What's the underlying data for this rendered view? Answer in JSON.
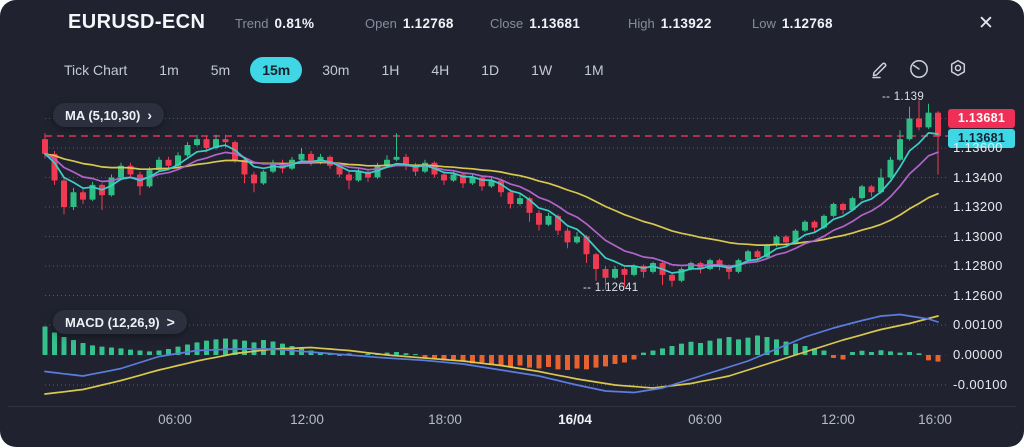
{
  "header": {
    "symbol": "EURUSD-ECN",
    "stats": [
      {
        "label": "Trend",
        "value": "0.81%"
      },
      {
        "label": "Open",
        "value": "1.12768"
      },
      {
        "label": "Close",
        "value": "1.13681"
      },
      {
        "label": "High",
        "value": "1.13922"
      },
      {
        "label": "Low",
        "value": "1.12768"
      }
    ],
    "close_glyph": "✕"
  },
  "toolbar": {
    "timeframes": [
      "Tick Chart",
      "1m",
      "5m",
      "15m",
      "30m",
      "1H",
      "4H",
      "1D",
      "1W",
      "1M"
    ],
    "active_timeframe": "15m",
    "icon_names": [
      "edit-icon",
      "gauge-icon",
      "settings-icon"
    ]
  },
  "price_panel": {
    "indicator_label": "MA (5,10,30)",
    "chevron": "›",
    "badge_close": {
      "value": "1.13681",
      "color": "#ef2f55"
    },
    "badge_current": {
      "value": "1.13681",
      "color": "#3fd7e6"
    },
    "high_annotation": "-- 1.139",
    "low_annotation": "-- 1.12641",
    "y_ticks": [
      "1.13600",
      "1.13400",
      "1.13200",
      "1.13000",
      "1.12800",
      "1.12600"
    ]
  },
  "macd_panel": {
    "indicator_label": "MACD (12,26,9)",
    "chevron": ">",
    "y_ticks": [
      "0.00100",
      "0.00000",
      "-0.00100"
    ]
  },
  "time_axis": {
    "labels": [
      {
        "label": "06:00",
        "emphasis": false
      },
      {
        "label": "12:00",
        "emphasis": false
      },
      {
        "label": "18:00",
        "emphasis": false
      },
      {
        "label": "16/04",
        "emphasis": true
      },
      {
        "label": "06:00",
        "emphasis": false
      },
      {
        "label": "12:00",
        "emphasis": false
      },
      {
        "label": "16:00",
        "emphasis": false
      }
    ]
  },
  "colors": {
    "up": "#2ebd85",
    "down": "#ef3a52",
    "ma5": "#3bcfc9",
    "ma10": "#b164c9",
    "ma30": "#d9c84f",
    "macd_line": "#5b7de0",
    "signal_line": "#d9c84f",
    "hist_up": "#35c08c",
    "hist_down": "#e8622f",
    "close_line": "#e8334e",
    "grid": "rgba(255,255,255,0.25)",
    "accent": "#3fd7e6",
    "card_bg": "#20232f"
  },
  "chart_data": {
    "type": "candlestick",
    "symbol": "EURUSD-ECN",
    "interval": "15m",
    "indicators": {
      "ma_periods": [
        5,
        10,
        30
      ],
      "macd_params": [
        12,
        26,
        9
      ]
    },
    "price_axis": {
      "min": 1.1255,
      "max": 1.1396,
      "gridlines": [
        1.138,
        1.136,
        1.134,
        1.132,
        1.13,
        1.128,
        1.126
      ]
    },
    "close_line": 1.13681,
    "high_marker": 1.13922,
    "low_marker": 1.12641,
    "candles": [
      [
        1.1366,
        1.137,
        1.1353,
        1.1356
      ],
      [
        1.1356,
        1.1358,
        1.1335,
        1.1338
      ],
      [
        1.1338,
        1.134,
        1.1315,
        1.132
      ],
      [
        1.132,
        1.1333,
        1.1318,
        1.133
      ],
      [
        1.133,
        1.1332,
        1.1322,
        1.1325
      ],
      [
        1.1325,
        1.1337,
        1.1324,
        1.1335
      ],
      [
        1.1335,
        1.1336,
        1.1318,
        1.1328
      ],
      [
        1.1328,
        1.1342,
        1.1327,
        1.134
      ],
      [
        1.134,
        1.135,
        1.1338,
        1.1348
      ],
      [
        1.1348,
        1.135,
        1.134,
        1.1342
      ],
      [
        1.1342,
        1.1344,
        1.1328,
        1.1334
      ],
      [
        1.1334,
        1.1347,
        1.1333,
        1.1345
      ],
      [
        1.1345,
        1.1354,
        1.1344,
        1.1352
      ],
      [
        1.1352,
        1.1354,
        1.1345,
        1.1348
      ],
      [
        1.1348,
        1.1357,
        1.1347,
        1.1355
      ],
      [
        1.1355,
        1.1364,
        1.1354,
        1.1362
      ],
      [
        1.1362,
        1.1369,
        1.1361,
        1.1366
      ],
      [
        1.1366,
        1.1368,
        1.1357,
        1.136
      ],
      [
        1.136,
        1.1369,
        1.1359,
        1.1366
      ],
      [
        1.1366,
        1.1369,
        1.136,
        1.1364
      ],
      [
        1.1364,
        1.1365,
        1.135,
        1.1352
      ],
      [
        1.1352,
        1.1354,
        1.1336,
        1.1342
      ],
      [
        1.1342,
        1.1344,
        1.133,
        1.1336
      ],
      [
        1.1336,
        1.1345,
        1.1335,
        1.1344
      ],
      [
        1.1344,
        1.1352,
        1.1343,
        1.135
      ],
      [
        1.135,
        1.1352,
        1.1343,
        1.1346
      ],
      [
        1.1346,
        1.1354,
        1.1345,
        1.1352
      ],
      [
        1.1352,
        1.136,
        1.1351,
        1.1356
      ],
      [
        1.1356,
        1.1358,
        1.1348,
        1.135
      ],
      [
        1.135,
        1.1356,
        1.1349,
        1.1354
      ],
      [
        1.1354,
        1.1355,
        1.1346,
        1.1348
      ],
      [
        1.1348,
        1.135,
        1.134,
        1.1342
      ],
      [
        1.1342,
        1.1344,
        1.1332,
        1.1338
      ],
      [
        1.1338,
        1.1346,
        1.1337,
        1.1344
      ],
      [
        1.1344,
        1.1345,
        1.1337,
        1.134
      ],
      [
        1.134,
        1.135,
        1.1339,
        1.1348
      ],
      [
        1.1348,
        1.1355,
        1.1347,
        1.1352
      ],
      [
        1.1352,
        1.137,
        1.1351,
        1.1354
      ],
      [
        1.1354,
        1.1356,
        1.1345,
        1.1348
      ],
      [
        1.1348,
        1.135,
        1.1341,
        1.1344
      ],
      [
        1.1344,
        1.1352,
        1.1343,
        1.135
      ],
      [
        1.135,
        1.1351,
        1.134,
        1.1342
      ],
      [
        1.1342,
        1.1344,
        1.1335,
        1.1338
      ],
      [
        1.1338,
        1.1344,
        1.1337,
        1.1342
      ],
      [
        1.1342,
        1.1343,
        1.1333,
        1.1336
      ],
      [
        1.1336,
        1.1342,
        1.1335,
        1.134
      ],
      [
        1.134,
        1.1341,
        1.1331,
        1.1334
      ],
      [
        1.1334,
        1.134,
        1.1333,
        1.1338
      ],
      [
        1.1338,
        1.1339,
        1.1327,
        1.133
      ],
      [
        1.133,
        1.1332,
        1.1319,
        1.1322
      ],
      [
        1.1322,
        1.1329,
        1.1321,
        1.1326
      ],
      [
        1.1326,
        1.1327,
        1.131,
        1.1316
      ],
      [
        1.1316,
        1.1318,
        1.1304,
        1.1308
      ],
      [
        1.1308,
        1.1316,
        1.1307,
        1.1314
      ],
      [
        1.1314,
        1.1315,
        1.1301,
        1.1304
      ],
      [
        1.1304,
        1.1306,
        1.1292,
        1.1296
      ],
      [
        1.1296,
        1.1303,
        1.1295,
        1.13
      ],
      [
        1.13,
        1.1301,
        1.1282,
        1.1288
      ],
      [
        1.1288,
        1.1289,
        1.127,
        1.1278
      ],
      [
        1.1278,
        1.128,
        1.12641,
        1.1272
      ],
      [
        1.1272,
        1.128,
        1.1271,
        1.1278
      ],
      [
        1.1278,
        1.1279,
        1.1266,
        1.1274
      ],
      [
        1.1274,
        1.1281,
        1.1273,
        1.128
      ],
      [
        1.128,
        1.1281,
        1.1272,
        1.1276
      ],
      [
        1.1276,
        1.1283,
        1.1275,
        1.1282
      ],
      [
        1.1282,
        1.1283,
        1.1267,
        1.1274
      ],
      [
        1.1274,
        1.1275,
        1.1266,
        1.127
      ],
      [
        1.127,
        1.1279,
        1.1269,
        1.1278
      ],
      [
        1.1278,
        1.1283,
        1.1277,
        1.1282
      ],
      [
        1.1282,
        1.1283,
        1.1275,
        1.1278
      ],
      [
        1.1278,
        1.1285,
        1.1277,
        1.1284
      ],
      [
        1.1284,
        1.1285,
        1.1277,
        1.128
      ],
      [
        1.128,
        1.1281,
        1.1271,
        1.1276
      ],
      [
        1.1276,
        1.1285,
        1.1275,
        1.1284
      ],
      [
        1.1284,
        1.1291,
        1.1283,
        1.129
      ],
      [
        1.129,
        1.1291,
        1.1283,
        1.1286
      ],
      [
        1.1286,
        1.1295,
        1.1285,
        1.1294
      ],
      [
        1.1294,
        1.1301,
        1.1293,
        1.13
      ],
      [
        1.13,
        1.1301,
        1.1293,
        1.1296
      ],
      [
        1.1296,
        1.1305,
        1.1295,
        1.1304
      ],
      [
        1.1304,
        1.1311,
        1.1303,
        1.131
      ],
      [
        1.131,
        1.1311,
        1.1303,
        1.1306
      ],
      [
        1.1306,
        1.1315,
        1.1305,
        1.1314
      ],
      [
        1.1314,
        1.1323,
        1.1313,
        1.1322
      ],
      [
        1.1322,
        1.1323,
        1.1315,
        1.1318
      ],
      [
        1.1318,
        1.1327,
        1.1317,
        1.1326
      ],
      [
        1.1326,
        1.1335,
        1.1325,
        1.1334
      ],
      [
        1.1334,
        1.1335,
        1.1327,
        1.133
      ],
      [
        1.133,
        1.1346,
        1.1329,
        1.134
      ],
      [
        1.134,
        1.1354,
        1.1339,
        1.1352
      ],
      [
        1.1352,
        1.1372,
        1.1351,
        1.1366
      ],
      [
        1.1366,
        1.1388,
        1.1365,
        1.138
      ],
      [
        1.138,
        1.13922,
        1.1372,
        1.1374
      ],
      [
        1.1374,
        1.139,
        1.1373,
        1.1384
      ],
      [
        1.1384,
        1.1385,
        1.1342,
        1.13681
      ]
    ],
    "macd": {
      "axis_gridlines": [
        0.001,
        0,
        -0.001
      ],
      "histogram": [
        0.00095,
        0.00075,
        0.0006,
        0.0005,
        0.0004,
        0.00032,
        0.00028,
        0.00025,
        0.00022,
        0.00018,
        0.00015,
        0.00012,
        0.00015,
        0.0002,
        0.00028,
        0.00035,
        0.00042,
        0.00048,
        0.00052,
        0.00055,
        0.00052,
        0.00048,
        0.00042,
        0.0005,
        0.00045,
        0.00038,
        0.0003,
        0.00022,
        0.00015,
        0.0001,
        6e-05,
        -3e-05,
        5e-05,
        -2e-05,
        4e-05,
        6e-05,
        8e-05,
        0.0001,
        6e-05,
        3e-05,
        -8e-05,
        -0.00012,
        -0.00018,
        -0.00015,
        -0.00022,
        -0.00028,
        -0.00025,
        -0.0003,
        -0.00035,
        -0.0004,
        -0.00035,
        -0.00042,
        -0.00045,
        -0.0004,
        -0.00048,
        -0.0005,
        -0.00045,
        -0.00048,
        -0.00042,
        -0.00038,
        -0.0003,
        -0.00025,
        -0.00015,
        8e-05,
        0.00015,
        0.00022,
        0.0003,
        0.00038,
        0.00044,
        0.0004,
        0.00048,
        0.00055,
        0.0006,
        0.00052,
        0.00058,
        0.00065,
        0.0006,
        0.00052,
        0.00045,
        0.00038,
        0.0003,
        0.00022,
        0.00015,
        -0.0001,
        -0.00015,
        0.0001,
        0.00014,
        0.0001,
        0.00016,
        0.00012,
        8e-05,
        0.0001,
        6e-05,
        -0.00018,
        -0.00022
      ],
      "macd_line_anchors": [
        [
          0,
          -0.00055
        ],
        [
          4,
          -0.0007
        ],
        [
          8,
          -0.00045
        ],
        [
          12,
          -5e-05
        ],
        [
          16,
          0.00015
        ],
        [
          20,
          0.0002
        ],
        [
          24,
          0.0002
        ],
        [
          28,
          0.0001
        ],
        [
          32,
          0
        ],
        [
          36,
          -0.0001
        ],
        [
          40,
          -0.00018
        ],
        [
          44,
          -0.0003
        ],
        [
          48,
          -0.0005
        ],
        [
          52,
          -0.0007
        ],
        [
          56,
          -0.001
        ],
        [
          59,
          -0.0012
        ],
        [
          62,
          -0.00125
        ],
        [
          65,
          -0.0011
        ],
        [
          68,
          -0.0008
        ],
        [
          71,
          -0.0005
        ],
        [
          74,
          -0.0002
        ],
        [
          77,
          0.0002
        ],
        [
          80,
          0.0006
        ],
        [
          83,
          0.0009
        ],
        [
          86,
          0.00115
        ],
        [
          88,
          0.0013
        ],
        [
          90,
          0.00135
        ],
        [
          92,
          0.00125
        ],
        [
          93,
          0.0012
        ],
        [
          94,
          0.0011
        ]
      ],
      "signal_line_anchors": [
        [
          0,
          -0.0013
        ],
        [
          4,
          -0.00115
        ],
        [
          8,
          -0.00085
        ],
        [
          12,
          -0.0005
        ],
        [
          16,
          -0.0002
        ],
        [
          20,
          5e-05
        ],
        [
          24,
          0.0002
        ],
        [
          28,
          0.00025
        ],
        [
          32,
          0.00015
        ],
        [
          36,
          0
        ],
        [
          40,
          -0.0001
        ],
        [
          44,
          -0.0002
        ],
        [
          48,
          -0.00035
        ],
        [
          52,
          -0.00055
        ],
        [
          56,
          -0.0008
        ],
        [
          60,
          -0.001
        ],
        [
          64,
          -0.0011
        ],
        [
          68,
          -0.00095
        ],
        [
          72,
          -0.0007
        ],
        [
          76,
          -0.0003
        ],
        [
          80,
          0.0001
        ],
        [
          84,
          0.0005
        ],
        [
          88,
          0.00085
        ],
        [
          91,
          0.00105
        ],
        [
          94,
          0.0013
        ]
      ]
    }
  }
}
